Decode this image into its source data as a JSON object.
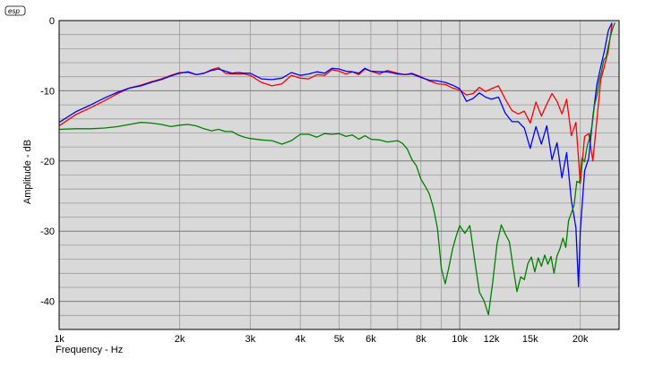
{
  "logo": "esp",
  "chart_data": {
    "type": "line",
    "title": "",
    "xlabel": "Frequency - Hz",
    "ylabel": "Amplitude - dB",
    "xscale": "log",
    "xlim": [
      1000,
      25000
    ],
    "ylim": [
      -44,
      0
    ],
    "grid": true,
    "legend": "none",
    "x_ticks": [
      {
        "value": 1000,
        "label": "1k"
      },
      {
        "value": 2000,
        "label": "2k"
      },
      {
        "value": 3000,
        "label": "3k"
      },
      {
        "value": 4000,
        "label": "4k"
      },
      {
        "value": 5000,
        "label": "5k"
      },
      {
        "value": 6000,
        "label": "6k"
      },
      {
        "value": 8000,
        "label": "8k"
      },
      {
        "value": 10000,
        "label": "10k"
      },
      {
        "value": 12000,
        "label": "12k"
      },
      {
        "value": 15000,
        "label": "15k"
      },
      {
        "value": 20000,
        "label": "20k"
      }
    ],
    "y_ticks": [
      {
        "value": 0,
        "label": "0"
      },
      {
        "value": -10,
        "label": "-10"
      },
      {
        "value": -20,
        "label": "-20"
      },
      {
        "value": -30,
        "label": "-30"
      },
      {
        "value": -40,
        "label": "-40"
      }
    ],
    "series": [
      {
        "color": "#ff0000",
        "x": [
          1000,
          1100,
          1200,
          1300,
          1400,
          1500,
          1600,
          1700,
          1800,
          1900,
          2000,
          2100,
          2200,
          2300,
          2400,
          2500,
          2600,
          2700,
          2800,
          2900,
          3000,
          3200,
          3400,
          3600,
          3800,
          4000,
          4200,
          4400,
          4600,
          4800,
          5000,
          5200,
          5400,
          5600,
          5800,
          6000,
          6300,
          6600,
          7000,
          7300,
          7600,
          8000,
          8400,
          8800,
          9200,
          9600,
          10000,
          10400,
          10800,
          11200,
          11600,
          12000,
          12500,
          13000,
          13500,
          14000,
          14500,
          15000,
          15500,
          16000,
          16500,
          17000,
          17500,
          18000,
          18500,
          19000,
          19500,
          20000,
          20500,
          21000,
          21500,
          22000,
          22500,
          23000,
          23500,
          24000
        ],
        "y": [
          -15,
          -13.4,
          -12.4,
          -11.4,
          -10.4,
          -9.6,
          -9.2,
          -8.7,
          -8.3,
          -7.8,
          -7.4,
          -7.4,
          -7.7,
          -7.5,
          -7,
          -6.7,
          -7.5,
          -7.6,
          -7.6,
          -7.6,
          -7.8,
          -8.8,
          -9.3,
          -9,
          -7.8,
          -8.2,
          -8.3,
          -7.7,
          -7.8,
          -7,
          -7.2,
          -7.6,
          -7.3,
          -7.7,
          -6.9,
          -7.2,
          -7.6,
          -7.1,
          -7.5,
          -7.7,
          -7.5,
          -8,
          -8.6,
          -9,
          -9.1,
          -9.6,
          -9.9,
          -10.6,
          -10.4,
          -9.5,
          -10.1,
          -9.7,
          -9.3,
          -11.2,
          -12.8,
          -13.3,
          -12.9,
          -14.6,
          -11.6,
          -13.6,
          -11.9,
          -10.4,
          -11.5,
          -13.3,
          -11.2,
          -16.4,
          -14.5,
          -23.2,
          -16.5,
          -16.1,
          -20,
          -14.2,
          -8.5,
          -6.4,
          -4.3,
          -0.5
        ]
      },
      {
        "color": "#0000ff",
        "x": [
          1000,
          1100,
          1200,
          1300,
          1400,
          1500,
          1600,
          1700,
          1800,
          1900,
          2000,
          2100,
          2200,
          2300,
          2400,
          2500,
          2600,
          2700,
          2800,
          2900,
          3000,
          3200,
          3400,
          3600,
          3800,
          4000,
          4200,
          4400,
          4600,
          4800,
          5000,
          5200,
          5400,
          5600,
          5800,
          6000,
          6300,
          6600,
          7000,
          7300,
          7600,
          8000,
          8400,
          8800,
          9200,
          9600,
          10000,
          10400,
          10800,
          11200,
          11600,
          12000,
          12500,
          13000,
          13500,
          14000,
          14500,
          15000,
          15500,
          16000,
          16500,
          17000,
          17500,
          18000,
          18500,
          19000,
          19500,
          19800,
          20000,
          20500,
          21000,
          21500,
          22000,
          22500,
          23000,
          23500,
          24000
        ],
        "y": [
          -14.5,
          -13,
          -12,
          -11,
          -10.2,
          -9.6,
          -9.3,
          -8.8,
          -8.4,
          -7.9,
          -7.5,
          -7.3,
          -7.7,
          -7.5,
          -7.1,
          -6.9,
          -7.2,
          -7.5,
          -7.4,
          -7.5,
          -7.5,
          -8.3,
          -8.4,
          -8.2,
          -7.4,
          -7.8,
          -7.6,
          -7.3,
          -7.5,
          -6.8,
          -6.9,
          -7.2,
          -7.3,
          -7.5,
          -6.8,
          -7.2,
          -7.3,
          -7.3,
          -7.6,
          -7.7,
          -7.6,
          -8.1,
          -8.5,
          -8.6,
          -8.8,
          -9.2,
          -9.7,
          -11.5,
          -11.1,
          -10.3,
          -10.9,
          -11.2,
          -10.9,
          -13.2,
          -14.4,
          -14.4,
          -15.3,
          -18.2,
          -15.1,
          -17.6,
          -15,
          -19.8,
          -17.4,
          -22.4,
          -18.8,
          -25.6,
          -29.5,
          -37.9,
          -30,
          -21.4,
          -19.6,
          -13.7,
          -9.1,
          -6.6,
          -4.2,
          -1.4,
          -0.3
        ]
      },
      {
        "color": "#008000",
        "x": [
          1000,
          1100,
          1200,
          1300,
          1400,
          1500,
          1600,
          1700,
          1800,
          1900,
          2000,
          2100,
          2200,
          2300,
          2400,
          2500,
          2600,
          2700,
          2800,
          2900,
          3000,
          3200,
          3400,
          3600,
          3800,
          4000,
          4200,
          4400,
          4600,
          4800,
          5000,
          5200,
          5400,
          5600,
          5800,
          6000,
          6300,
          6600,
          7000,
          7200,
          7400,
          7600,
          7800,
          8000,
          8200,
          8400,
          8600,
          8800,
          9000,
          9200,
          9400,
          9600,
          9800,
          10000,
          10300,
          10600,
          10900,
          11200,
          11500,
          11800,
          12100,
          12400,
          12700,
          13000,
          13300,
          13600,
          13900,
          14200,
          14500,
          14800,
          15100,
          15400,
          15700,
          16000,
          16300,
          16600,
          16900,
          17200,
          17500,
          17800,
          18100,
          18400,
          18700,
          19000,
          19300,
          19600,
          19900,
          20200,
          20500,
          20800,
          21100,
          21400,
          21700,
          22000,
          22300,
          22600,
          22900,
          23200,
          23500,
          23800,
          24100,
          24400
        ],
        "y": [
          -15.5,
          -15.4,
          -15.4,
          -15.3,
          -15.1,
          -14.8,
          -14.5,
          -14.6,
          -14.8,
          -15.1,
          -14.9,
          -14.8,
          -15,
          -15.4,
          -15.7,
          -15.5,
          -15.8,
          -15.8,
          -16.3,
          -16.6,
          -16.8,
          -17,
          -17.1,
          -17.6,
          -17.1,
          -16.2,
          -16.2,
          -16.6,
          -16.1,
          -16.2,
          -16.1,
          -16.5,
          -16.3,
          -16.9,
          -16.4,
          -16.9,
          -17,
          -17.3,
          -17.1,
          -17.5,
          -18.3,
          -19.8,
          -20.7,
          -22.6,
          -23.6,
          -24.7,
          -26.7,
          -29.6,
          -35.3,
          -37.5,
          -35.1,
          -32.5,
          -30.7,
          -29.2,
          -30.3,
          -29.2,
          -34.1,
          -38.7,
          -39.9,
          -41.9,
          -37.1,
          -31.7,
          -29.1,
          -30.4,
          -31.5,
          -35.2,
          -38.6,
          -36.5,
          -36.9,
          -34.6,
          -33.7,
          -35.8,
          -33.8,
          -35,
          -33.4,
          -34.7,
          -33.6,
          -36,
          -33.5,
          -32.5,
          -31,
          -32.3,
          -28.5,
          -27.4,
          -26.3,
          -22.9,
          -23.1,
          -19.6,
          -20.1,
          -17.9,
          -16.7,
          -15,
          -12.1,
          -10.7,
          -8.6,
          -7.3,
          -5.6,
          -5.2,
          -3.6,
          -2.2,
          -1.1,
          -0.3
        ]
      }
    ]
  }
}
